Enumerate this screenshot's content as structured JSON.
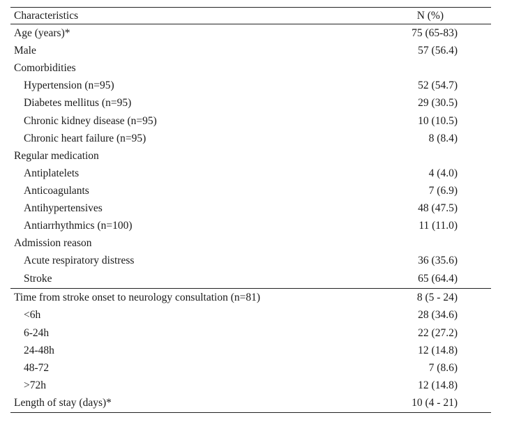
{
  "table": {
    "header": {
      "characteristics": "Characteristics",
      "n_percent": "N (%)"
    },
    "rows": [
      {
        "label": "Age (years)*",
        "value": "75 (65-83)"
      },
      {
        "label": "Male",
        "value": "57 (56.4)"
      },
      {
        "label": "Comorbidities",
        "value": ""
      },
      {
        "label": "Hypertension (n=95)",
        "value": "52 (54.7)"
      },
      {
        "label": "Diabetes mellitus (n=95)",
        "value": "29 (30.5)"
      },
      {
        "label": "Chronic kidney disease (n=95)",
        "value": "10 (10.5)"
      },
      {
        "label": "Chronic heart failure (n=95)",
        "value": "8 (8.4)"
      },
      {
        "label": "Regular medication",
        "value": ""
      },
      {
        "label": "Antiplatelets",
        "value": "4 (4.0)"
      },
      {
        "label": "Anticoagulants",
        "value": "7 (6.9)"
      },
      {
        "label": "Antihypertensives",
        "value": "48 (47.5)"
      },
      {
        "label": "Antiarrhythmics (n=100)",
        "value": "11 (11.0)"
      },
      {
        "label": "Admission reason",
        "value": ""
      },
      {
        "label": "Acute respiratory distress",
        "value": "36 (35.6)"
      },
      {
        "label": "Stroke",
        "value": "65 (64.4)"
      },
      {
        "label": "Time from stroke onset to neurology consultation (n=81)",
        "value": "8 (5 - 24)"
      },
      {
        "label": "<6h",
        "value": "28 (34.6)"
      },
      {
        "label": "6-24h",
        "value": "22 (27.2)"
      },
      {
        "label": "24-48h",
        "value": "12 (14.8)"
      },
      {
        "label": "48-72",
        "value": "7 (8.6)"
      },
      {
        "label": ">72h",
        "value": "12 (14.8)"
      },
      {
        "label": "Length of stay (days)*",
        "value": "10 (4 - 21)"
      }
    ]
  }
}
